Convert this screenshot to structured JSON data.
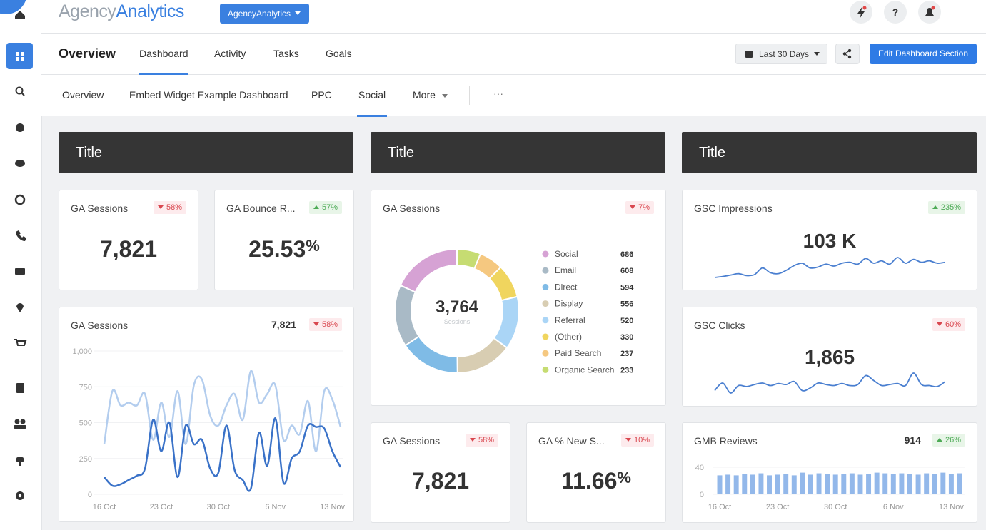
{
  "header": {
    "logo_part1": "Agency",
    "logo_part2": "Analytics",
    "account": "AgencyAnalytics",
    "help": "?"
  },
  "nav": {
    "title": "Overview",
    "tabs": [
      "Dashboard",
      "Activity",
      "Tasks",
      "Goals"
    ],
    "active_tab": 0,
    "date_range": "Last 30 Days",
    "edit_button": "Edit Dashboard Section"
  },
  "subnav": {
    "tabs": [
      "Overview",
      "Embed Widget Example Dashboard",
      "PPC",
      "Social",
      "More"
    ],
    "active_tab": 3,
    "overflow": "···"
  },
  "sections": [
    "Title",
    "Title",
    "Title"
  ],
  "widgets": {
    "ga_sessions_kpi": {
      "title": "GA Sessions",
      "change": "58%",
      "direction": "down",
      "value": "7,821"
    },
    "bounce_rate": {
      "title": "GA Bounce R...",
      "change": "57%",
      "direction": "up",
      "value": "25.53",
      "unit": "%"
    },
    "sessions_donut": {
      "title": "GA Sessions",
      "change": "7%",
      "direction": "down",
      "total": "3,764",
      "total_label": "Sessions",
      "chart": {
        "type": "pie",
        "categories": [
          "Social",
          "Email",
          "Direct",
          "Display",
          "Referral",
          "(Other)",
          "Paid Search",
          "Organic Search"
        ],
        "values": [
          686,
          608,
          594,
          556,
          520,
          330,
          237,
          233
        ],
        "colors": [
          "#d6a2d4",
          "#a9bac6",
          "#7fbbe6",
          "#d8cdb2",
          "#aad5f6",
          "#f0d55e",
          "#f5c880",
          "#c6dc72"
        ]
      }
    },
    "gsc_impressions": {
      "title": "GSC Impressions",
      "change": "235%",
      "direction": "up",
      "value": "103 K",
      "chart": {
        "type": "line",
        "color": "#4a7fd0",
        "values": [
          20,
          22,
          25,
          28,
          24,
          26,
          40,
          30,
          28,
          35,
          45,
          50,
          40,
          42,
          48,
          44,
          50,
          52,
          48,
          60,
          50,
          55,
          48,
          62,
          50,
          58,
          52,
          55,
          50,
          52
        ]
      }
    },
    "ga_sessions_chart": {
      "title": "GA Sessions",
      "value": "7,821",
      "change": "58%",
      "direction": "down",
      "chart": {
        "type": "line",
        "categories": [
          "16 Oct",
          null,
          null,
          null,
          null,
          null,
          null,
          "23 Oct",
          null,
          null,
          null,
          null,
          null,
          null,
          "30 Oct",
          null,
          null,
          null,
          null,
          null,
          null,
          "6 Nov",
          null,
          null,
          null,
          null,
          null,
          null,
          "13 Nov",
          null
        ],
        "ylim": [
          0,
          1000
        ],
        "yticks": [
          0,
          250,
          500,
          750,
          {
            "value": 1000,
            "label": "1,000"
          }
        ],
        "grid": true,
        "series": [
          {
            "color": "#b3cdee",
            "values": [
              350,
              720,
              620,
              640,
              620,
              700,
              380,
              640,
              400,
              720,
              350,
              760,
              800,
              550,
              480,
              620,
              700,
              520,
              860,
              640,
              700,
              760,
              380,
              480,
              420,
              650,
              300,
              720,
              660,
              470
            ]
          },
          {
            "color": "#3a72c8",
            "values": [
              120,
              60,
              70,
              100,
              130,
              180,
              520,
              300,
              500,
              120,
              480,
              350,
              380,
              180,
              150,
              480,
              170,
              100,
              40,
              430,
              200,
              530,
              80,
              250,
              300,
              480,
              470,
              460,
              300,
              190
            ]
          }
        ]
      }
    },
    "gsc_clicks": {
      "title": "GSC Clicks",
      "change": "60%",
      "direction": "down",
      "value": "1,865",
      "chart": {
        "type": "line",
        "color": "#4a7fd0",
        "values": [
          30,
          45,
          25,
          40,
          38,
          42,
          45,
          40,
          44,
          42,
          48,
          30,
          35,
          45,
          42,
          40,
          44,
          40,
          42,
          60,
          50,
          40,
          42,
          44,
          40,
          65,
          42,
          40,
          38,
          48
        ]
      }
    },
    "ga_sessions_kpi2": {
      "title": "GA Sessions",
      "change": "58%",
      "direction": "down",
      "value": "7,821"
    },
    "new_sessions": {
      "title": "GA % New S...",
      "change": "10%",
      "direction": "down",
      "value": "11.66",
      "unit": "%"
    },
    "gmb_reviews": {
      "title": "GMB Reviews",
      "value": "914",
      "change": "26%",
      "direction": "up",
      "chart": {
        "type": "bar",
        "color": "#93b8ea",
        "categories": [
          "16 Oct",
          null,
          null,
          null,
          null,
          null,
          null,
          "23 Oct",
          null,
          null,
          null,
          null,
          null,
          null,
          "30 Oct",
          null,
          null,
          null,
          null,
          null,
          null,
          "6 Nov",
          null,
          null,
          null,
          null,
          null,
          null,
          "13 Nov",
          null
        ],
        "values": [
          28,
          29,
          28,
          30,
          29,
          31,
          28,
          29,
          30,
          28,
          32,
          29,
          31,
          30,
          29,
          30,
          31,
          29,
          30,
          32,
          31,
          30,
          31,
          30,
          29,
          31,
          30,
          32,
          30,
          31
        ],
        "ylim": [
          0,
          40
        ],
        "yticks": [
          0,
          40
        ],
        "grid": true
      }
    }
  }
}
